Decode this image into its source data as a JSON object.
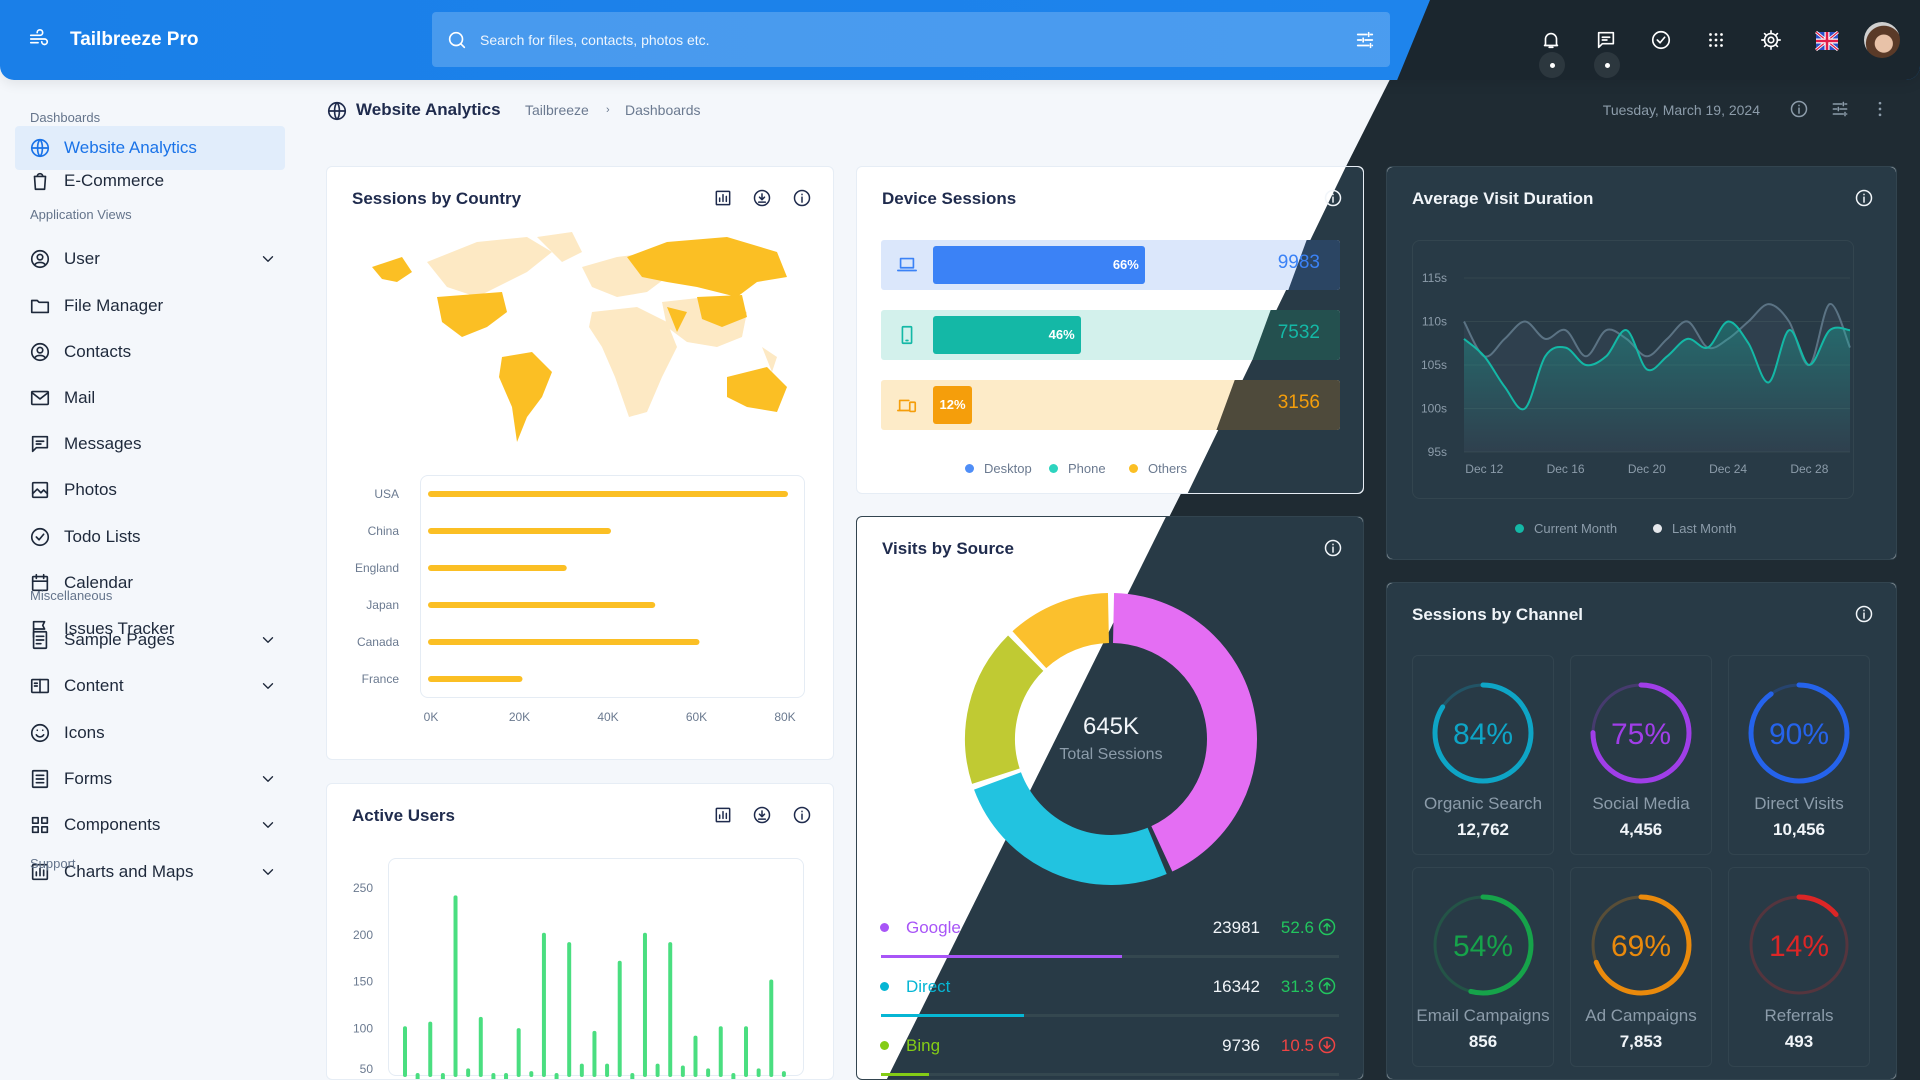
{
  "app": {
    "name": "Tailbreeze Pro"
  },
  "search": {
    "placeholder": "Search for files, contacts, photos etc."
  },
  "sidebar": {
    "sections": [
      {
        "title": "Dashboards",
        "items": [
          {
            "label": "Website Analytics",
            "icon": "globe",
            "active": true
          },
          {
            "label": "E-Commerce",
            "icon": "bag"
          }
        ]
      },
      {
        "title": "Application Views",
        "items": [
          {
            "label": "User",
            "icon": "user",
            "expandable": true
          },
          {
            "label": "File Manager",
            "icon": "folder"
          },
          {
            "label": "Contacts",
            "icon": "user"
          },
          {
            "label": "Mail",
            "icon": "mail"
          },
          {
            "label": "Messages",
            "icon": "message"
          },
          {
            "label": "Photos",
            "icon": "photo"
          },
          {
            "label": "Todo Lists",
            "icon": "check"
          },
          {
            "label": "Calendar",
            "icon": "calendar"
          },
          {
            "label": "Issues Tracker",
            "icon": "flag"
          }
        ]
      },
      {
        "title": "Miscellaneous",
        "items": [
          {
            "label": "Sample Pages",
            "icon": "page",
            "expandable": true
          },
          {
            "label": "Content",
            "icon": "columns",
            "expandable": true
          },
          {
            "label": "Icons",
            "icon": "smile"
          },
          {
            "label": "Forms",
            "icon": "form",
            "expandable": true
          },
          {
            "label": "Components",
            "icon": "grid",
            "expandable": true
          },
          {
            "label": "Charts and Maps",
            "icon": "chart",
            "expandable": true
          }
        ]
      },
      {
        "title": "Support",
        "items": []
      }
    ]
  },
  "page": {
    "title": "Website Analytics",
    "breadcrumb": [
      "Tailbreeze",
      "Dashboards"
    ],
    "date": "Tuesday, March 19, 2024"
  },
  "sessions_by_country": {
    "title": "Sessions by Country",
    "map": {
      "highlight_color": "#fbbf24",
      "base_color": "#fde9c4"
    }
  },
  "active_users": {
    "title": "Active Users"
  },
  "device_sessions": {
    "title": "Device Sessions",
    "rows": [
      {
        "device": "Desktop",
        "percent": 66,
        "percent_label": "66%",
        "value": "9983",
        "color": "#3b82f6",
        "bg": "#dbe7fb",
        "text_color": "#3b82f6"
      },
      {
        "device": "Phone",
        "percent": 46,
        "percent_label": "46%",
        "value": "7532",
        "color": "#14b8a6",
        "bg": "#d3f1ec",
        "text_color": "#14b8a6"
      },
      {
        "device": "Others",
        "percent": 12,
        "percent_label": "12%",
        "value": "3156",
        "color": "#f59e0b",
        "bg": "#fdebc8",
        "text_color": "#f59e0b"
      }
    ],
    "legend": [
      {
        "label": "Desktop",
        "color": "#4f8ef7"
      },
      {
        "label": "Phone",
        "color": "#2dd4bf"
      },
      {
        "label": "Others",
        "color": "#fbbf24"
      }
    ]
  },
  "visits_by_source": {
    "title": "Visits by Source",
    "total": "645K",
    "total_label": "Total Sessions",
    "sources": [
      {
        "name": "Google",
        "value": "23981",
        "change": "52.6",
        "trend": "up",
        "color": "#a855f7"
      },
      {
        "name": "Direct",
        "value": "16342",
        "change": "31.3",
        "trend": "up",
        "color": "#06b6d4"
      },
      {
        "name": "Bing",
        "value": "9736",
        "change": "10.5",
        "trend": "down",
        "color": "#84cc16"
      }
    ]
  },
  "avg_visit": {
    "title": "Average Visit Duration",
    "legend": [
      {
        "label": "Current Month",
        "color": "#14b8a6"
      },
      {
        "label": "Last Month",
        "color": "#e5e7eb"
      }
    ]
  },
  "sessions_by_channel": {
    "title": "Sessions by Channel",
    "channels": [
      {
        "label": "Organic Search",
        "percent": 84,
        "percent_label": "84%",
        "value": "12,762",
        "color": "#0ea5c6"
      },
      {
        "label": "Social Media",
        "percent": 75,
        "percent_label": "75%",
        "value": "4,456",
        "color": "#a03ee8"
      },
      {
        "label": "Direct Visits",
        "percent": 90,
        "percent_label": "90%",
        "value": "10,456",
        "color": "#2563eb"
      },
      {
        "label": "Email Campaigns",
        "percent": 54,
        "percent_label": "54%",
        "value": "856",
        "color": "#16a34a"
      },
      {
        "label": "Ad Campaigns",
        "percent": 69,
        "percent_label": "69%",
        "value": "7,853",
        "color": "#ea8a0c"
      },
      {
        "label": "Referrals",
        "percent": 14,
        "percent_label": "14%",
        "value": "493",
        "color": "#dc2626"
      }
    ]
  },
  "chart_data": [
    {
      "type": "bar",
      "orientation": "horizontal",
      "categories": [
        "USA",
        "China",
        "England",
        "Japan",
        "Canada",
        "France"
      ],
      "values": [
        80000,
        40000,
        30000,
        50000,
        60000,
        20000
      ],
      "xticks": [
        "0K",
        "20K",
        "40K",
        "60K",
        "80K"
      ],
      "xlim": [
        0,
        80000
      ],
      "color": "#fbbf24"
    },
    {
      "type": "bar",
      "values": [
        100,
        45,
        105,
        45,
        240,
        55,
        110,
        40,
        45,
        98,
        52,
        200,
        45,
        190,
        60,
        95,
        60,
        170,
        45,
        200,
        60,
        190,
        58,
        90,
        55,
        100,
        45,
        100,
        55,
        150,
        52
      ],
      "yticks": [
        250,
        200,
        150,
        100,
        50
      ],
      "color": "#4ade80"
    },
    {
      "type": "area",
      "x": [
        "Dec 11",
        "Dec 12",
        "Dec 13",
        "Dec 14",
        "Dec 15",
        "Dec 16",
        "Dec 17",
        "Dec 18",
        "Dec 19",
        "Dec 20",
        "Dec 21",
        "Dec 22",
        "Dec 23",
        "Dec 24",
        "Dec 25",
        "Dec 26",
        "Dec 27",
        "Dec 28",
        "Dec 29",
        "Dec 30"
      ],
      "xticks": [
        "Dec 12",
        "Dec 16",
        "Dec 20",
        "Dec 24",
        "Dec 28"
      ],
      "yticks": [
        "115s",
        "110s",
        "105s",
        "100s",
        "95s"
      ],
      "ylim": [
        95,
        115
      ],
      "series": [
        {
          "name": "Current Month",
          "color": "#14b8a6",
          "values": [
            108,
            106,
            102.5,
            100,
            106,
            107,
            105,
            106,
            109,
            104.5,
            106,
            108,
            107,
            110,
            107.5,
            103,
            109,
            105,
            109,
            109
          ]
        },
        {
          "name": "Last Month",
          "color": "#64748b",
          "values": [
            110,
            106,
            108,
            110,
            108,
            109,
            106,
            109,
            108,
            106,
            108,
            110,
            107,
            108,
            110,
            112,
            110,
            105,
            112,
            107
          ]
        }
      ]
    },
    {
      "type": "pie",
      "donut": true,
      "segments": [
        {
          "value": 43,
          "color": "#e46ef3"
        },
        {
          "value": 26,
          "color": "#22c3e0"
        },
        {
          "value": 18,
          "color": "#c0ca33"
        },
        {
          "value": 12,
          "color": "#fbc02d"
        }
      ]
    }
  ]
}
